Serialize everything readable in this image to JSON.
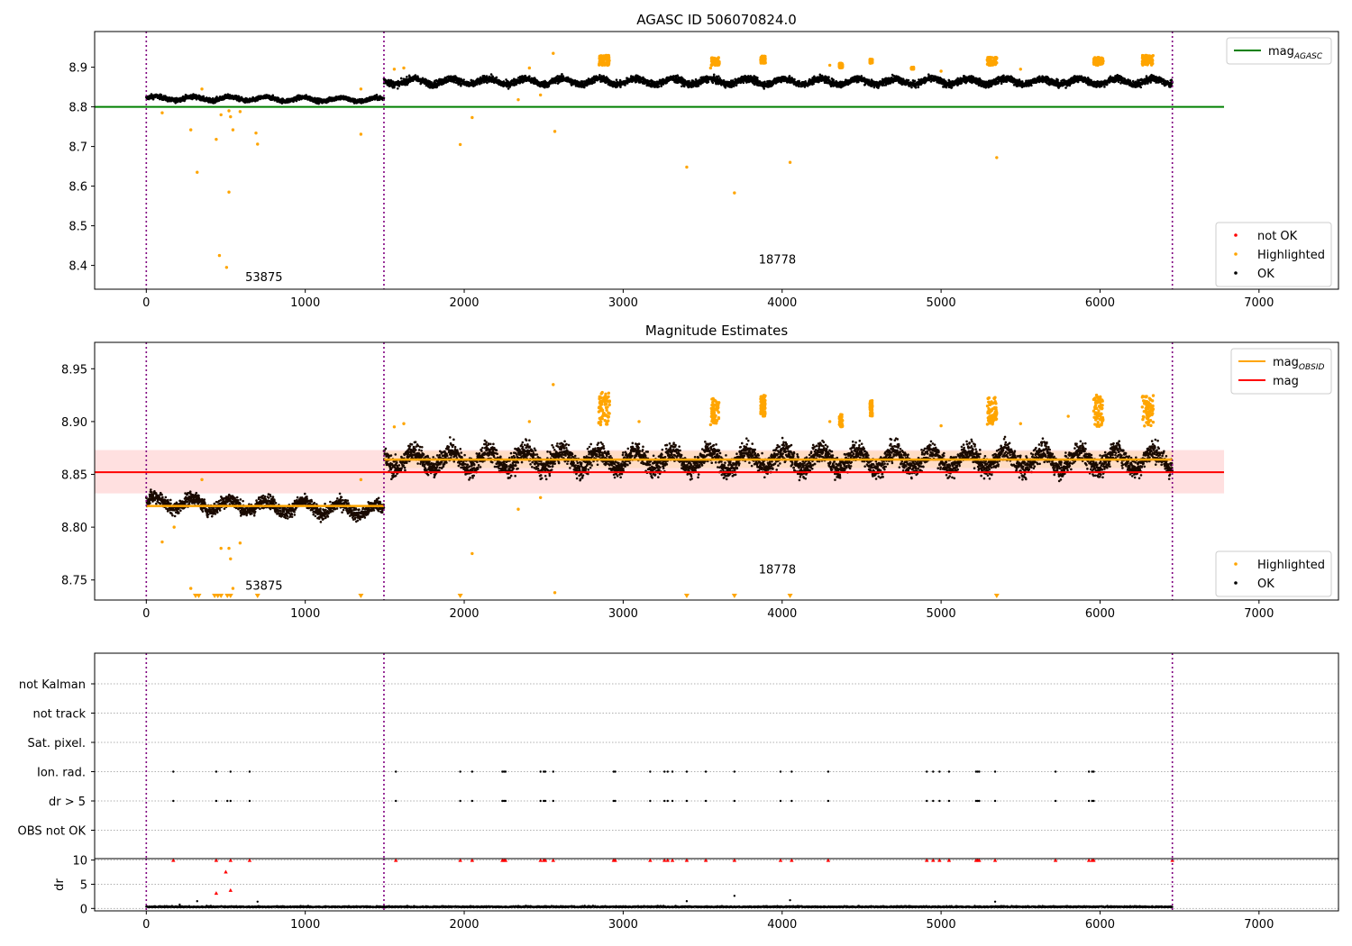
{
  "figure": {
    "title_top": "AGASC ID 506070824.0",
    "title_mid": "Magnitude Estimates"
  },
  "colors": {
    "ok": "#000000",
    "highlighted": "#ffa500",
    "not_ok": "#ff0000",
    "agasc_line": "#008000",
    "mean_line": "#ff0000",
    "obsid_line": "#ffa500",
    "band_fill": "#ffcccc",
    "obs_boundary": "#800080"
  },
  "chart_data": [
    {
      "name": "magnitude-vs-sample",
      "type": "scatter",
      "title": "AGASC ID 506070824.0",
      "xlabel": "",
      "ylabel": "",
      "xlim": [
        -325,
        7500
      ],
      "ylim": [
        8.34,
        8.99
      ],
      "xticks": [
        0,
        1000,
        2000,
        3000,
        4000,
        5000,
        6000,
        7000
      ],
      "yticks": [
        8.4,
        8.5,
        8.6,
        8.7,
        8.8,
        8.9
      ],
      "legends": [
        {
          "position": "upper right",
          "entries": [
            {
              "label": "mag",
              "sub": "AGASC",
              "kind": "line",
              "color": "#008000"
            }
          ]
        },
        {
          "position": "lower right",
          "entries": [
            {
              "label": "not OK",
              "kind": "dot",
              "color": "#ff0000"
            },
            {
              "label": "Highlighted",
              "kind": "dot",
              "color": "#ffa500"
            },
            {
              "label": "OK",
              "kind": "dot",
              "color": "#000000"
            }
          ]
        }
      ],
      "hlines": [
        {
          "y": 8.8,
          "x": [
            -325,
            6780
          ],
          "color": "#008000",
          "label": "mag_AGASC"
        }
      ],
      "vlines": [
        0,
        1495,
        6455
      ],
      "annotations": [
        {
          "text": "53875",
          "x": 740,
          "y": 8.36
        },
        {
          "text": "18778",
          "x": 3970,
          "y": 8.405
        }
      ],
      "series": [
        {
          "name": "OK",
          "segments": [
            {
              "x_start": 0,
              "x_end": 1495,
              "level": 8.822,
              "level_end": 8.818,
              "spread": 0.008
            },
            {
              "x_start": 1495,
              "x_end": 6455,
              "level": 8.864,
              "level_end": 8.864,
              "spread": 0.012
            }
          ]
        },
        {
          "name": "Highlighted",
          "points": [
            [
              100,
              8.785
            ],
            [
              280,
              8.742
            ],
            [
              320,
              8.635
            ],
            [
              350,
              8.845
            ],
            [
              440,
              8.718
            ],
            [
              460,
              8.425
            ],
            [
              470,
              8.78
            ],
            [
              505,
              8.395
            ],
            [
              520,
              8.585
            ],
            [
              520,
              8.79
            ],
            [
              530,
              8.775
            ],
            [
              545,
              8.742
            ],
            [
              590,
              8.788
            ],
            [
              690,
              8.734
            ],
            [
              700,
              8.706
            ],
            [
              1350,
              8.731
            ],
            [
              1350,
              8.845
            ],
            [
              1560,
              8.895
            ],
            [
              1620,
              8.898
            ],
            [
              1975,
              8.705
            ],
            [
              2050,
              8.773
            ],
            [
              2340,
              8.818
            ],
            [
              2410,
              8.898
            ],
            [
              2480,
              8.83
            ],
            [
              2560,
              8.935
            ],
            [
              2570,
              8.738
            ],
            [
              3400,
              8.648
            ],
            [
              3550,
              8.898
            ],
            [
              3700,
              8.583
            ],
            [
              4050,
              8.66
            ],
            [
              4300,
              8.905
            ],
            [
              5000,
              8.89
            ],
            [
              5350,
              8.672
            ],
            [
              5500,
              8.895
            ]
          ],
          "clusters": [
            {
              "x": 2880,
              "width": 70,
              "y_min": 8.905,
              "y_max": 8.93
            },
            {
              "x": 3580,
              "width": 50,
              "y_min": 8.905,
              "y_max": 8.925
            },
            {
              "x": 3880,
              "width": 30,
              "y_min": 8.91,
              "y_max": 8.928
            },
            {
              "x": 4370,
              "width": 20,
              "y_min": 8.898,
              "y_max": 8.91
            },
            {
              "x": 4560,
              "width": 15,
              "y_min": 8.91,
              "y_max": 8.92
            },
            {
              "x": 4820,
              "width": 15,
              "y_min": 8.895,
              "y_max": 8.9
            },
            {
              "x": 5320,
              "width": 60,
              "y_min": 8.905,
              "y_max": 8.925
            },
            {
              "x": 5990,
              "width": 60,
              "y_min": 8.905,
              "y_max": 8.925
            },
            {
              "x": 6300,
              "width": 70,
              "y_min": 8.905,
              "y_max": 8.93
            }
          ]
        }
      ]
    },
    {
      "name": "magnitude-estimates",
      "type": "scatter",
      "title": "Magnitude Estimates",
      "xlabel": "",
      "ylabel": "",
      "xlim": [
        -325,
        7500
      ],
      "ylim": [
        8.731,
        8.975
      ],
      "xticks": [
        0,
        1000,
        2000,
        3000,
        4000,
        5000,
        6000,
        7000
      ],
      "yticks": [
        8.75,
        8.8,
        8.85,
        8.9,
        8.95
      ],
      "legends": [
        {
          "position": "upper right",
          "entries": [
            {
              "label": "mag",
              "sub": "OBSID",
              "kind": "line",
              "color": "#ffa500"
            },
            {
              "label": "mag",
              "kind": "line",
              "color": "#ff0000"
            }
          ]
        },
        {
          "position": "lower right",
          "entries": [
            {
              "label": "Highlighted",
              "kind": "dot",
              "color": "#ffa500"
            },
            {
              "label": "OK",
              "kind": "dot",
              "color": "#000000"
            }
          ]
        }
      ],
      "hlines": [
        {
          "y": 8.852,
          "x": [
            -325,
            6780
          ],
          "color": "#ff0000",
          "label": "mag"
        }
      ],
      "bands": [
        {
          "x": [
            -325,
            6780
          ],
          "y": [
            8.832,
            8.873
          ],
          "color": "#ffcccc",
          "alpha": 0.6
        },
        {
          "x": [
            1495,
            6455
          ],
          "y": [
            8.856,
            8.872
          ],
          "color": "#ffd9b3",
          "alpha": 0.6
        }
      ],
      "obsid_means": [
        {
          "x": [
            0,
            1495
          ],
          "y": 8.82
        },
        {
          "x": [
            1495,
            6455
          ],
          "y": 8.864
        }
      ],
      "vlines": [
        0,
        1495,
        6455
      ],
      "annotations": [
        {
          "text": "53875",
          "x": 740,
          "y": 8.741
        },
        {
          "text": "18778",
          "x": 3970,
          "y": 8.756
        }
      ],
      "clipped_markers": [
        310,
        330,
        430,
        450,
        470,
        510,
        530,
        700,
        1350,
        1975,
        3400,
        3700,
        4050,
        5350
      ],
      "series": [
        {
          "name": "OK",
          "segments": [
            {
              "x_start": 0,
              "x_end": 1495,
              "level": 8.824,
              "level_end": 8.816,
              "spread": 0.009
            },
            {
              "x_start": 1495,
              "x_end": 6455,
              "level": 8.864,
              "level_end": 8.864,
              "spread": 0.014
            }
          ]
        },
        {
          "name": "Highlighted",
          "points": [
            [
              100,
              8.786
            ],
            [
              175,
              8.8
            ],
            [
              280,
              8.742
            ],
            [
              350,
              8.845
            ],
            [
              470,
              8.78
            ],
            [
              520,
              8.78
            ],
            [
              530,
              8.77
            ],
            [
              545,
              8.742
            ],
            [
              590,
              8.785
            ],
            [
              1350,
              8.845
            ],
            [
              1560,
              8.895
            ],
            [
              1620,
              8.898
            ],
            [
              2050,
              8.775
            ],
            [
              2340,
              8.817
            ],
            [
              2410,
              8.9
            ],
            [
              2480,
              8.828
            ],
            [
              2560,
              8.935
            ],
            [
              2570,
              8.738
            ],
            [
              3100,
              8.9
            ],
            [
              3550,
              8.897
            ],
            [
              4300,
              8.9
            ],
            [
              5000,
              8.896
            ],
            [
              5500,
              8.898
            ],
            [
              5800,
              8.905
            ]
          ],
          "clusters": [
            {
              "x": 2880,
              "width": 70,
              "y_min": 8.895,
              "y_max": 8.928
            },
            {
              "x": 3580,
              "width": 50,
              "y_min": 8.898,
              "y_max": 8.922
            },
            {
              "x": 3880,
              "width": 30,
              "y_min": 8.905,
              "y_max": 8.925
            },
            {
              "x": 4370,
              "width": 20,
              "y_min": 8.895,
              "y_max": 8.907
            },
            {
              "x": 4560,
              "width": 15,
              "y_min": 8.905,
              "y_max": 8.92
            },
            {
              "x": 5320,
              "width": 60,
              "y_min": 8.897,
              "y_max": 8.923
            },
            {
              "x": 5990,
              "width": 60,
              "y_min": 8.895,
              "y_max": 8.925
            },
            {
              "x": 6300,
              "width": 70,
              "y_min": 8.895,
              "y_max": 8.925
            }
          ]
        }
      ]
    },
    {
      "name": "flags",
      "type": "scatter",
      "xlabel": "",
      "ylabel": "",
      "xlim": [
        -325,
        7500
      ],
      "categories": [
        "not Kalman",
        "not track",
        "Sat. pixel.",
        "Ion. rad.",
        "dr > 5",
        "OBS not OK"
      ],
      "vlines": [
        0,
        1495,
        6455
      ],
      "flag_points": {
        "not Kalman": [],
        "not track": [],
        "Sat. pixel.": [],
        "Ion. rad.": [
          170,
          440,
          530,
          650,
          1570,
          1975,
          2050,
          2240,
          2250,
          2260,
          2480,
          2500,
          2510,
          2560,
          2940,
          2950,
          3170,
          3260,
          3280,
          3310,
          3400,
          3520,
          3700,
          3990,
          4060,
          4290,
          4910,
          4950,
          4990,
          5050,
          5220,
          5230,
          5240,
          5340,
          5720,
          5930,
          5950,
          5960
        ],
        "dr > 5": [
          170,
          440,
          510,
          530,
          650,
          1570,
          1975,
          2050,
          2240,
          2250,
          2260,
          2480,
          2500,
          2510,
          2560,
          2940,
          2950,
          3170,
          3260,
          3280,
          3310,
          3400,
          3520,
          3700,
          3990,
          4060,
          4290,
          4910,
          4950,
          4990,
          5050,
          5220,
          5230,
          5240,
          5340,
          5720,
          5930,
          5950,
          5960
        ],
        "OBS not OK": []
      }
    },
    {
      "name": "dr",
      "type": "scatter",
      "xlabel": "",
      "ylabel": "dr",
      "xlim": [
        -325,
        7500
      ],
      "ylim": [
        -0.5,
        10.3
      ],
      "xticks": [
        0,
        1000,
        2000,
        3000,
        4000,
        5000,
        6000,
        7000
      ],
      "yticks": [
        0,
        5,
        10
      ],
      "vlines": [
        0,
        1495,
        6455
      ],
      "series": [
        {
          "name": "OK",
          "baseline": {
            "x_start": 0,
            "x_end": 6455,
            "mean": 0.25,
            "spread": 0.25
          },
          "points": [
            [
              210,
              0.8
            ],
            [
              320,
              1.5
            ],
            [
              700,
              1.4
            ],
            [
              3400,
              1.5
            ],
            [
              3700,
              2.6
            ],
            [
              4050,
              1.7
            ],
            [
              5340,
              1.4
            ]
          ]
        },
        {
          "name": "not OK",
          "points": [
            [
              500,
              7.6
            ],
            [
              440,
              3.2
            ],
            [
              530,
              3.8
            ],
            [
              170,
              10
            ],
            [
              440,
              10
            ],
            [
              530,
              10
            ],
            [
              650,
              10
            ],
            [
              1570,
              10
            ],
            [
              1975,
              10
            ],
            [
              2050,
              10
            ],
            [
              2240,
              10
            ],
            [
              2250,
              10
            ],
            [
              2260,
              10
            ],
            [
              2480,
              10
            ],
            [
              2500,
              10
            ],
            [
              2510,
              10
            ],
            [
              2560,
              10
            ],
            [
              2940,
              10
            ],
            [
              2950,
              10
            ],
            [
              3170,
              10
            ],
            [
              3260,
              10
            ],
            [
              3280,
              10
            ],
            [
              3310,
              10
            ],
            [
              3400,
              10
            ],
            [
              3520,
              10
            ],
            [
              3700,
              10
            ],
            [
              3990,
              10
            ],
            [
              4060,
              10
            ],
            [
              4290,
              10
            ],
            [
              4910,
              10
            ],
            [
              4950,
              10
            ],
            [
              4990,
              10
            ],
            [
              5050,
              10
            ],
            [
              5220,
              10
            ],
            [
              5230,
              10
            ],
            [
              5240,
              10
            ],
            [
              5340,
              10
            ],
            [
              5720,
              10
            ],
            [
              5930,
              10
            ],
            [
              5950,
              10
            ],
            [
              5960,
              10
            ],
            [
              6455,
              10
            ]
          ]
        }
      ]
    }
  ]
}
